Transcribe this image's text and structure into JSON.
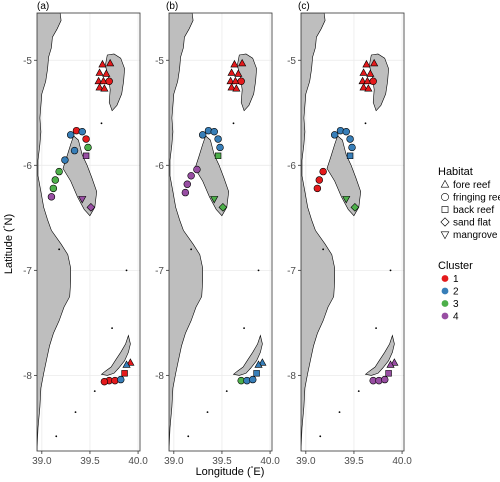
{
  "figure": {
    "xlabel_main": "Longitude (",
    "xlabel_unit": "E)",
    "ylabel_main": "Latitude (",
    "ylabel_unit": "N)",
    "degree_symbol": "°"
  },
  "legend": {
    "habitat_title": "Habitat",
    "habitats": [
      {
        "name": "fore reef",
        "shape": "triangle-up"
      },
      {
        "name": "fringing reef",
        "shape": "circle"
      },
      {
        "name": "back reef",
        "shape": "square"
      },
      {
        "name": "sand flat",
        "shape": "diamond"
      },
      {
        "name": "mangrove",
        "shape": "triangle-down"
      }
    ],
    "cluster_title": "Cluster",
    "clusters": [
      {
        "name": "1",
        "color": "#e41a1c"
      },
      {
        "name": "2",
        "color": "#377eb8"
      },
      {
        "name": "3",
        "color": "#4daf4a"
      },
      {
        "name": "4",
        "color": "#984ea3"
      }
    ]
  },
  "colors": {
    "land": "#bebebe",
    "coast": "#000000",
    "grid": "#ebebeb",
    "panel_border": "#333333"
  },
  "chart_data": {
    "type": "scatter",
    "panels": [
      {
        "label": "(a)",
        "xlim": [
          38.95,
          40.02
        ],
        "ylim": [
          -8.72,
          -4.55
        ],
        "xticks": [
          39.0,
          39.5,
          40.0
        ],
        "xtick_labels": [
          "39.0",
          "39.5",
          "40.0"
        ],
        "yticks": [
          -5,
          -6,
          -7,
          -8
        ],
        "ytick_labels": [
          "-5",
          "-6",
          "-7",
          "-8"
        ],
        "points": [
          {
            "lon": 39.63,
            "lat": -5.04,
            "habitat": "fore reef",
            "cluster": "1"
          },
          {
            "lon": 39.71,
            "lat": -5.03,
            "habitat": "fore reef",
            "cluster": "1"
          },
          {
            "lon": 39.6,
            "lat": -5.12,
            "habitat": "fore reef",
            "cluster": "1"
          },
          {
            "lon": 39.67,
            "lat": -5.13,
            "habitat": "fore reef",
            "cluster": "1"
          },
          {
            "lon": 39.59,
            "lat": -5.2,
            "habitat": "fore reef",
            "cluster": "1"
          },
          {
            "lon": 39.64,
            "lat": -5.2,
            "habitat": "fore reef",
            "cluster": "1"
          },
          {
            "lon": 39.6,
            "lat": -5.26,
            "habitat": "fore reef",
            "cluster": "1"
          },
          {
            "lon": 39.65,
            "lat": -5.27,
            "habitat": "fore reef",
            "cluster": "1"
          },
          {
            "lon": 39.7,
            "lat": -5.2,
            "habitat": "fringing reef",
            "cluster": "1"
          },
          {
            "lon": 39.3,
            "lat": -5.71,
            "habitat": "fringing reef",
            "cluster": "2"
          },
          {
            "lon": 39.36,
            "lat": -5.67,
            "habitat": "fringing reef",
            "cluster": "1"
          },
          {
            "lon": 39.42,
            "lat": -5.68,
            "habitat": "fringing reef",
            "cluster": "2"
          },
          {
            "lon": 39.46,
            "lat": -5.75,
            "habitat": "fringing reef",
            "cluster": "1"
          },
          {
            "lon": 39.48,
            "lat": -5.83,
            "habitat": "fringing reef",
            "cluster": "3"
          },
          {
            "lon": 39.46,
            "lat": -5.91,
            "habitat": "back reef",
            "cluster": "4"
          },
          {
            "lon": 39.34,
            "lat": -5.86,
            "habitat": "fringing reef",
            "cluster": "2"
          },
          {
            "lon": 39.24,
            "lat": -5.95,
            "habitat": "fringing reef",
            "cluster": "2"
          },
          {
            "lon": 39.18,
            "lat": -6.06,
            "habitat": "fringing reef",
            "cluster": "3"
          },
          {
            "lon": 39.14,
            "lat": -6.14,
            "habitat": "fringing reef",
            "cluster": "3"
          },
          {
            "lon": 39.12,
            "lat": -6.22,
            "habitat": "fringing reef",
            "cluster": "3"
          },
          {
            "lon": 39.1,
            "lat": -6.3,
            "habitat": "fringing reef",
            "cluster": "4"
          },
          {
            "lon": 39.42,
            "lat": -6.32,
            "habitat": "mangrove",
            "cluster": "4"
          },
          {
            "lon": 39.51,
            "lat": -6.4,
            "habitat": "sand flat",
            "cluster": "4"
          },
          {
            "lon": 39.92,
            "lat": -7.88,
            "habitat": "fore reef",
            "cluster": "1"
          },
          {
            "lon": 39.88,
            "lat": -7.9,
            "habitat": "fore reef",
            "cluster": "2"
          },
          {
            "lon": 39.86,
            "lat": -7.98,
            "habitat": "back reef",
            "cluster": "1"
          },
          {
            "lon": 39.7,
            "lat": -8.05,
            "habitat": "fringing reef",
            "cluster": "1"
          },
          {
            "lon": 39.76,
            "lat": -8.05,
            "habitat": "fringing reef",
            "cluster": "1"
          },
          {
            "lon": 39.82,
            "lat": -8.04,
            "habitat": "fringing reef",
            "cluster": "2"
          },
          {
            "lon": 39.65,
            "lat": -8.06,
            "habitat": "fringing reef",
            "cluster": "1"
          }
        ]
      },
      {
        "label": "(b)",
        "xlim": [
          38.95,
          40.02
        ],
        "ylim": [
          -8.72,
          -4.55
        ],
        "xticks": [
          39.0,
          39.5,
          40.0
        ],
        "xtick_labels": [
          "39.0",
          "39.5",
          "40.0"
        ],
        "yticks": [
          -5,
          -6,
          -7,
          -8
        ],
        "ytick_labels": [
          "-5",
          "-6",
          "-7",
          "-8"
        ],
        "points": [
          {
            "lon": 39.63,
            "lat": -5.04,
            "habitat": "fore reef",
            "cluster": "1"
          },
          {
            "lon": 39.71,
            "lat": -5.03,
            "habitat": "fore reef",
            "cluster": "1"
          },
          {
            "lon": 39.6,
            "lat": -5.12,
            "habitat": "fore reef",
            "cluster": "1"
          },
          {
            "lon": 39.67,
            "lat": -5.13,
            "habitat": "fore reef",
            "cluster": "1"
          },
          {
            "lon": 39.59,
            "lat": -5.2,
            "habitat": "fore reef",
            "cluster": "1"
          },
          {
            "lon": 39.64,
            "lat": -5.2,
            "habitat": "fore reef",
            "cluster": "1"
          },
          {
            "lon": 39.6,
            "lat": -5.26,
            "habitat": "fore reef",
            "cluster": "1"
          },
          {
            "lon": 39.65,
            "lat": -5.27,
            "habitat": "fore reef",
            "cluster": "1"
          },
          {
            "lon": 39.7,
            "lat": -5.2,
            "habitat": "fringing reef",
            "cluster": "1"
          },
          {
            "lon": 39.3,
            "lat": -5.71,
            "habitat": "fringing reef",
            "cluster": "2"
          },
          {
            "lon": 39.36,
            "lat": -5.67,
            "habitat": "fringing reef",
            "cluster": "2"
          },
          {
            "lon": 39.42,
            "lat": -5.68,
            "habitat": "fringing reef",
            "cluster": "2"
          },
          {
            "lon": 39.46,
            "lat": -5.75,
            "habitat": "fringing reef",
            "cluster": "2"
          },
          {
            "lon": 39.48,
            "lat": -5.83,
            "habitat": "fringing reef",
            "cluster": "2"
          },
          {
            "lon": 39.46,
            "lat": -5.91,
            "habitat": "back reef",
            "cluster": "3"
          },
          {
            "lon": 39.24,
            "lat": -6.04,
            "habitat": "fringing reef",
            "cluster": "4"
          },
          {
            "lon": 39.18,
            "lat": -6.1,
            "habitat": "fringing reef",
            "cluster": "4"
          },
          {
            "lon": 39.14,
            "lat": -6.18,
            "habitat": "fringing reef",
            "cluster": "4"
          },
          {
            "lon": 39.12,
            "lat": -6.26,
            "habitat": "fringing reef",
            "cluster": "4"
          },
          {
            "lon": 39.42,
            "lat": -6.32,
            "habitat": "mangrove",
            "cluster": "3"
          },
          {
            "lon": 39.51,
            "lat": -6.4,
            "habitat": "sand flat",
            "cluster": "3"
          },
          {
            "lon": 39.92,
            "lat": -7.88,
            "habitat": "fore reef",
            "cluster": "2"
          },
          {
            "lon": 39.88,
            "lat": -7.9,
            "habitat": "fore reef",
            "cluster": "2"
          },
          {
            "lon": 39.86,
            "lat": -7.98,
            "habitat": "back reef",
            "cluster": "2"
          },
          {
            "lon": 39.7,
            "lat": -8.05,
            "habitat": "fringing reef",
            "cluster": "3"
          },
          {
            "lon": 39.76,
            "lat": -8.05,
            "habitat": "fringing reef",
            "cluster": "2"
          },
          {
            "lon": 39.82,
            "lat": -8.04,
            "habitat": "fringing reef",
            "cluster": "2"
          }
        ]
      },
      {
        "label": "(c)",
        "xlim": [
          38.95,
          40.02
        ],
        "ylim": [
          -8.72,
          -4.55
        ],
        "xticks": [
          39.0,
          39.5,
          40.0
        ],
        "xtick_labels": [
          "39.0",
          "39.5",
          "40.0"
        ],
        "yticks": [
          -5,
          -6,
          -7,
          -8
        ],
        "ytick_labels": [
          "-5",
          "-6",
          "-7",
          "-8"
        ],
        "points": [
          {
            "lon": 39.63,
            "lat": -5.04,
            "habitat": "fore reef",
            "cluster": "1"
          },
          {
            "lon": 39.71,
            "lat": -5.03,
            "habitat": "fore reef",
            "cluster": "1"
          },
          {
            "lon": 39.6,
            "lat": -5.12,
            "habitat": "fore reef",
            "cluster": "1"
          },
          {
            "lon": 39.67,
            "lat": -5.13,
            "habitat": "fore reef",
            "cluster": "1"
          },
          {
            "lon": 39.59,
            "lat": -5.2,
            "habitat": "fore reef",
            "cluster": "1"
          },
          {
            "lon": 39.64,
            "lat": -5.2,
            "habitat": "fore reef",
            "cluster": "1"
          },
          {
            "lon": 39.6,
            "lat": -5.26,
            "habitat": "fore reef",
            "cluster": "1"
          },
          {
            "lon": 39.65,
            "lat": -5.27,
            "habitat": "fore reef",
            "cluster": "1"
          },
          {
            "lon": 39.7,
            "lat": -5.2,
            "habitat": "fringing reef",
            "cluster": "1"
          },
          {
            "lon": 39.3,
            "lat": -5.71,
            "habitat": "fringing reef",
            "cluster": "2"
          },
          {
            "lon": 39.36,
            "lat": -5.67,
            "habitat": "fringing reef",
            "cluster": "2"
          },
          {
            "lon": 39.42,
            "lat": -5.68,
            "habitat": "fringing reef",
            "cluster": "2"
          },
          {
            "lon": 39.46,
            "lat": -5.75,
            "habitat": "fringing reef",
            "cluster": "2"
          },
          {
            "lon": 39.48,
            "lat": -5.83,
            "habitat": "fringing reef",
            "cluster": "2"
          },
          {
            "lon": 39.46,
            "lat": -5.91,
            "habitat": "back reef",
            "cluster": "2"
          },
          {
            "lon": 39.18,
            "lat": -6.06,
            "habitat": "fringing reef",
            "cluster": "1"
          },
          {
            "lon": 39.14,
            "lat": -6.14,
            "habitat": "fringing reef",
            "cluster": "1"
          },
          {
            "lon": 39.12,
            "lat": -6.22,
            "habitat": "fringing reef",
            "cluster": "1"
          },
          {
            "lon": 39.42,
            "lat": -6.32,
            "habitat": "mangrove",
            "cluster": "3"
          },
          {
            "lon": 39.51,
            "lat": -6.4,
            "habitat": "sand flat",
            "cluster": "3"
          },
          {
            "lon": 39.92,
            "lat": -7.88,
            "habitat": "fore reef",
            "cluster": "4"
          },
          {
            "lon": 39.88,
            "lat": -7.9,
            "habitat": "fore reef",
            "cluster": "4"
          },
          {
            "lon": 39.86,
            "lat": -7.98,
            "habitat": "back reef",
            "cluster": "4"
          },
          {
            "lon": 39.7,
            "lat": -8.05,
            "habitat": "fringing reef",
            "cluster": "4"
          },
          {
            "lon": 39.76,
            "lat": -8.05,
            "habitat": "fringing reef",
            "cluster": "4"
          },
          {
            "lon": 39.82,
            "lat": -8.04,
            "habitat": "fringing reef",
            "cluster": "4"
          }
        ]
      }
    ]
  }
}
